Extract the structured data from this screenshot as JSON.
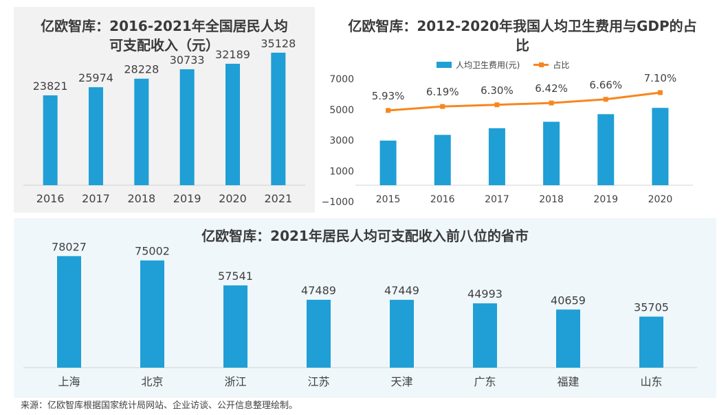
{
  "colors": {
    "bar": "#1f9fd5",
    "line": "#f7861e"
  },
  "chart_data": [
    {
      "type": "bar",
      "title": "亿欧智库：2016-2021年全国居民人均可支配收入（元）",
      "categories": [
        "2016",
        "2017",
        "2018",
        "2019",
        "2020",
        "2021"
      ],
      "values": [
        23821,
        25974,
        28228,
        30733,
        32189,
        35128
      ],
      "ylim": [
        0,
        40000
      ],
      "grid": false
    },
    {
      "type": "bar",
      "title": "亿欧智库：2012-2020年我国人均卫生费用与GDP的占比",
      "categories": [
        "2015",
        "2016",
        "2017",
        "2018",
        "2019",
        "2020"
      ],
      "series": [
        {
          "name": "人均卫生费用(元)",
          "type": "bar",
          "values": [
            2980,
            3352,
            3784,
            4206,
            4702,
            5112
          ]
        },
        {
          "name": "占比",
          "type": "line",
          "values": [
            5.93,
            6.19,
            6.3,
            6.42,
            6.66,
            7.1
          ],
          "labels": [
            "5.93%",
            "6.19%",
            "6.30%",
            "6.42%",
            "6.66%",
            "7.10%"
          ]
        }
      ],
      "yticks": [
        "7000",
        "5000",
        "3000",
        "1000",
        "−1000"
      ],
      "ylim": [
        -1000,
        7000
      ],
      "legend": "top-center",
      "grid": false
    },
    {
      "type": "bar",
      "title": "亿欧智库：2021年居民人均可支配收入前八位的省市",
      "categories": [
        "上海",
        "北京",
        "浙江",
        "江苏",
        "天津",
        "广东",
        "福建",
        "山东"
      ],
      "values": [
        78027,
        75002,
        57541,
        47489,
        47449,
        44993,
        40659,
        35705
      ],
      "ylim": [
        0,
        95000
      ],
      "grid": false
    }
  ],
  "legend_labels": {
    "bar": "人均卫生费用(元)",
    "line": "占比"
  },
  "footer": {
    "source": "来源：亿欧智库根据国家统计局网站、企业访谈、公开信息整理绘制。"
  }
}
